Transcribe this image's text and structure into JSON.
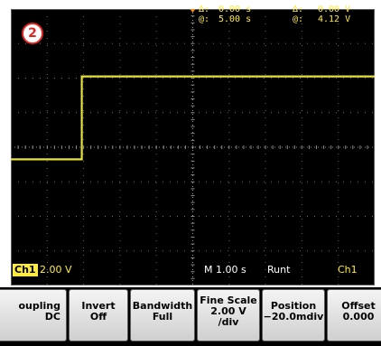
{
  "badge": "2",
  "cursor": {
    "delta_label": "Δ:",
    "at_label": "@:",
    "time_delta": "0.00 s",
    "time_at": "5.00 s",
    "volt_delta": "0.00 V",
    "volt_at": "4.12 V"
  },
  "status": {
    "channel_tag": "Ch1",
    "channel_scale": "2.00 V",
    "timebase": "M 1.00 s",
    "trigger_type": "Runt",
    "trigger_source": "Ch1"
  },
  "menu": [
    {
      "title": "oupling",
      "value": "DC"
    },
    {
      "title": "Invert",
      "value": "Off"
    },
    {
      "title": "Bandwidth",
      "value": "Full"
    },
    {
      "title": "Fine Scale",
      "value": "2.00 V",
      "value2": "/div"
    },
    {
      "title": "Position",
      "value": "−20.0mdiv"
    },
    {
      "title": "Offset",
      "value": "0.000"
    }
  ],
  "colors": {
    "trace": "#e6e23a",
    "readout": "#ffea44",
    "badge": "#e0261f"
  },
  "chart_data": {
    "type": "line",
    "series": [
      {
        "name": "",
        "x_div": [
          0,
          1.95,
          1.95,
          10
        ],
        "y_div": [
          -0.35,
          -0.35,
          2.05,
          2.05
        ]
      }
    ]
  }
}
